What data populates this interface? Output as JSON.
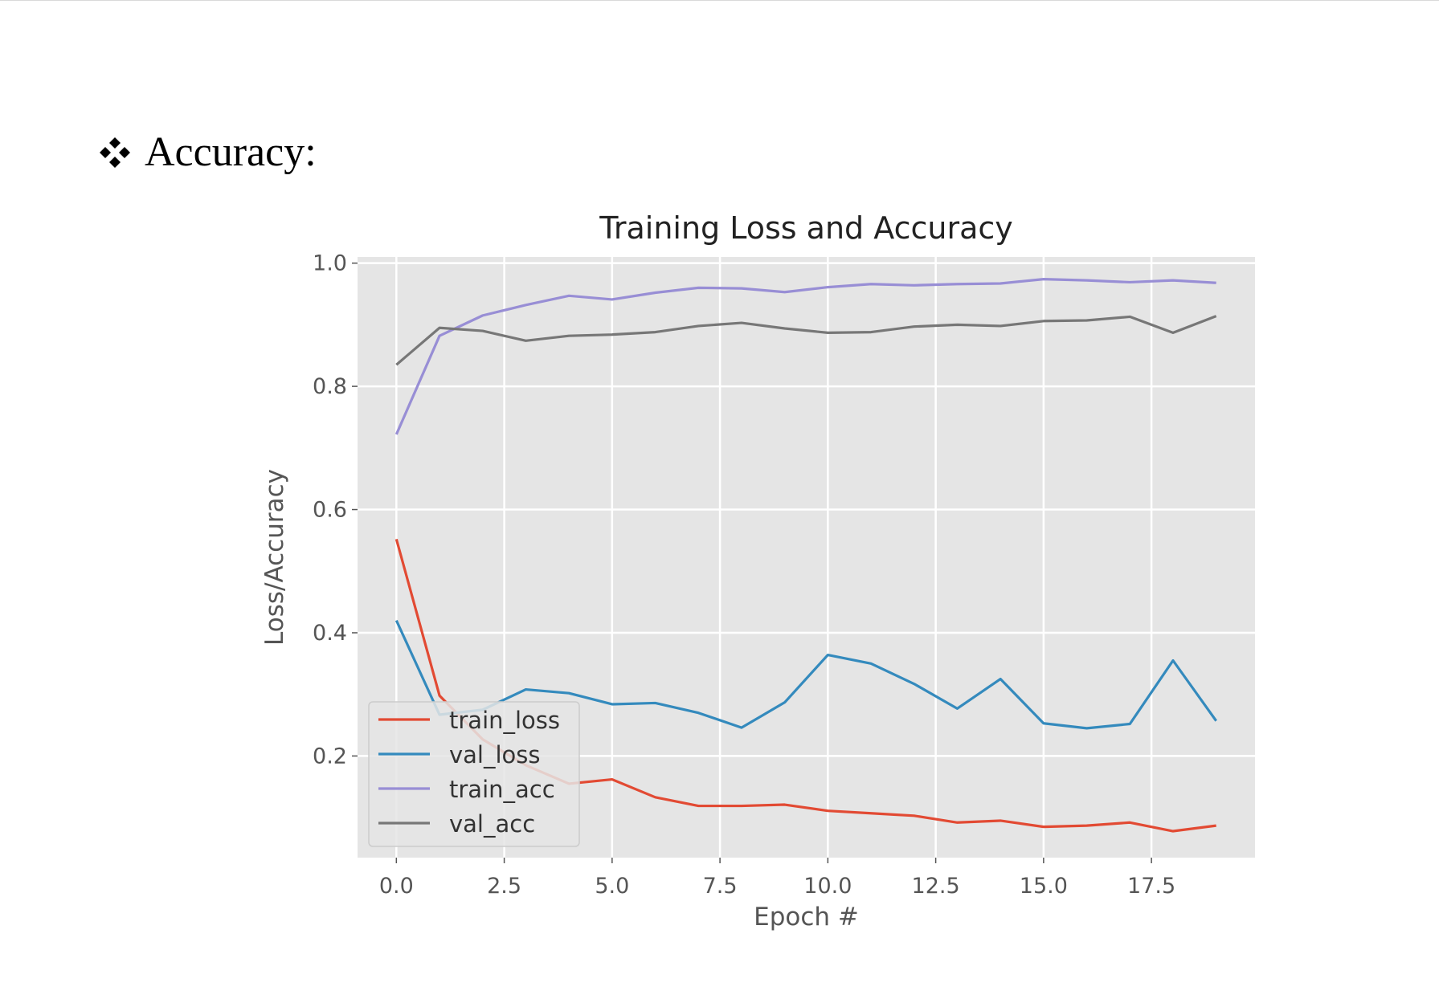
{
  "heading": {
    "bullet_icon": "diamond-cluster-bullet-icon",
    "text": "Accuracy:"
  },
  "chart_data": {
    "type": "line",
    "title": "Training Loss and Accuracy",
    "xlabel": "Epoch #",
    "ylabel": "Loss/Accuracy",
    "xlim": [
      -0.9,
      19.9
    ],
    "ylim": [
      0.035,
      1.01
    ],
    "xticks": [
      0.0,
      2.5,
      5.0,
      7.5,
      10.0,
      12.5,
      15.0,
      17.5
    ],
    "xtick_labels": [
      "0.0",
      "2.5",
      "5.0",
      "7.5",
      "10.0",
      "12.5",
      "15.0",
      "17.5"
    ],
    "yticks": [
      0.2,
      0.4,
      0.6,
      0.8,
      1.0
    ],
    "ytick_labels": [
      "0.2",
      "0.4",
      "0.6",
      "0.8",
      "1.0"
    ],
    "grid": true,
    "legend_position": "lower-left",
    "x": [
      0,
      1,
      2,
      3,
      4,
      5,
      6,
      7,
      8,
      9,
      10,
      11,
      12,
      13,
      14,
      15,
      16,
      17,
      18,
      19
    ],
    "series": [
      {
        "name": "train_loss",
        "color": "#e24a33",
        "values": [
          0.552,
          0.298,
          0.227,
          0.185,
          0.155,
          0.162,
          0.133,
          0.119,
          0.119,
          0.121,
          0.111,
          0.107,
          0.103,
          0.092,
          0.095,
          0.085,
          0.087,
          0.092,
          0.078,
          0.087
        ]
      },
      {
        "name": "val_loss",
        "color": "#348abd",
        "values": [
          0.42,
          0.267,
          0.275,
          0.308,
          0.302,
          0.284,
          0.286,
          0.27,
          0.246,
          0.287,
          0.364,
          0.35,
          0.317,
          0.277,
          0.325,
          0.253,
          0.245,
          0.252,
          0.355,
          0.257
        ]
      },
      {
        "name": "train_acc",
        "color": "#988ed5",
        "values": [
          0.722,
          0.882,
          0.915,
          0.932,
          0.947,
          0.941,
          0.952,
          0.96,
          0.959,
          0.953,
          0.961,
          0.966,
          0.964,
          0.966,
          0.967,
          0.974,
          0.972,
          0.969,
          0.972,
          0.968
        ]
      },
      {
        "name": "val_acc",
        "color": "#777777",
        "values": [
          0.835,
          0.895,
          0.89,
          0.874,
          0.882,
          0.884,
          0.888,
          0.898,
          0.903,
          0.894,
          0.887,
          0.888,
          0.897,
          0.9,
          0.898,
          0.906,
          0.907,
          0.913,
          0.887,
          0.914
        ]
      }
    ]
  }
}
